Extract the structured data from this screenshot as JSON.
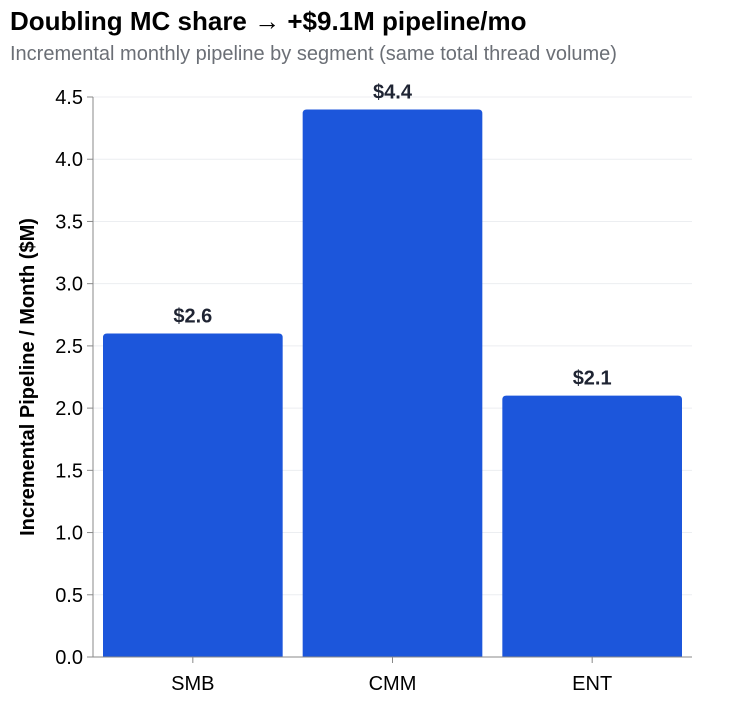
{
  "chart_data": {
    "type": "bar",
    "title": "Doubling MC share → +$9.1M pipeline/mo",
    "subtitle": "Incremental monthly pipeline by segment (same total thread volume)",
    "xlabel": "",
    "ylabel": "Incremental Pipeline / Month ($M)",
    "categories": [
      "SMB",
      "CMM",
      "ENT"
    ],
    "values": [
      2.6,
      4.4,
      2.1
    ],
    "data_labels": [
      "$2.6",
      "$4.4",
      "$2.1"
    ],
    "ylim": [
      0,
      4.5
    ],
    "yticks": [
      "0.0",
      "0.5",
      "1.0",
      "1.5",
      "2.0",
      "2.5",
      "3.0",
      "3.5",
      "4.0",
      "4.5"
    ],
    "grid": true,
    "bar_color": "#1c56db"
  }
}
